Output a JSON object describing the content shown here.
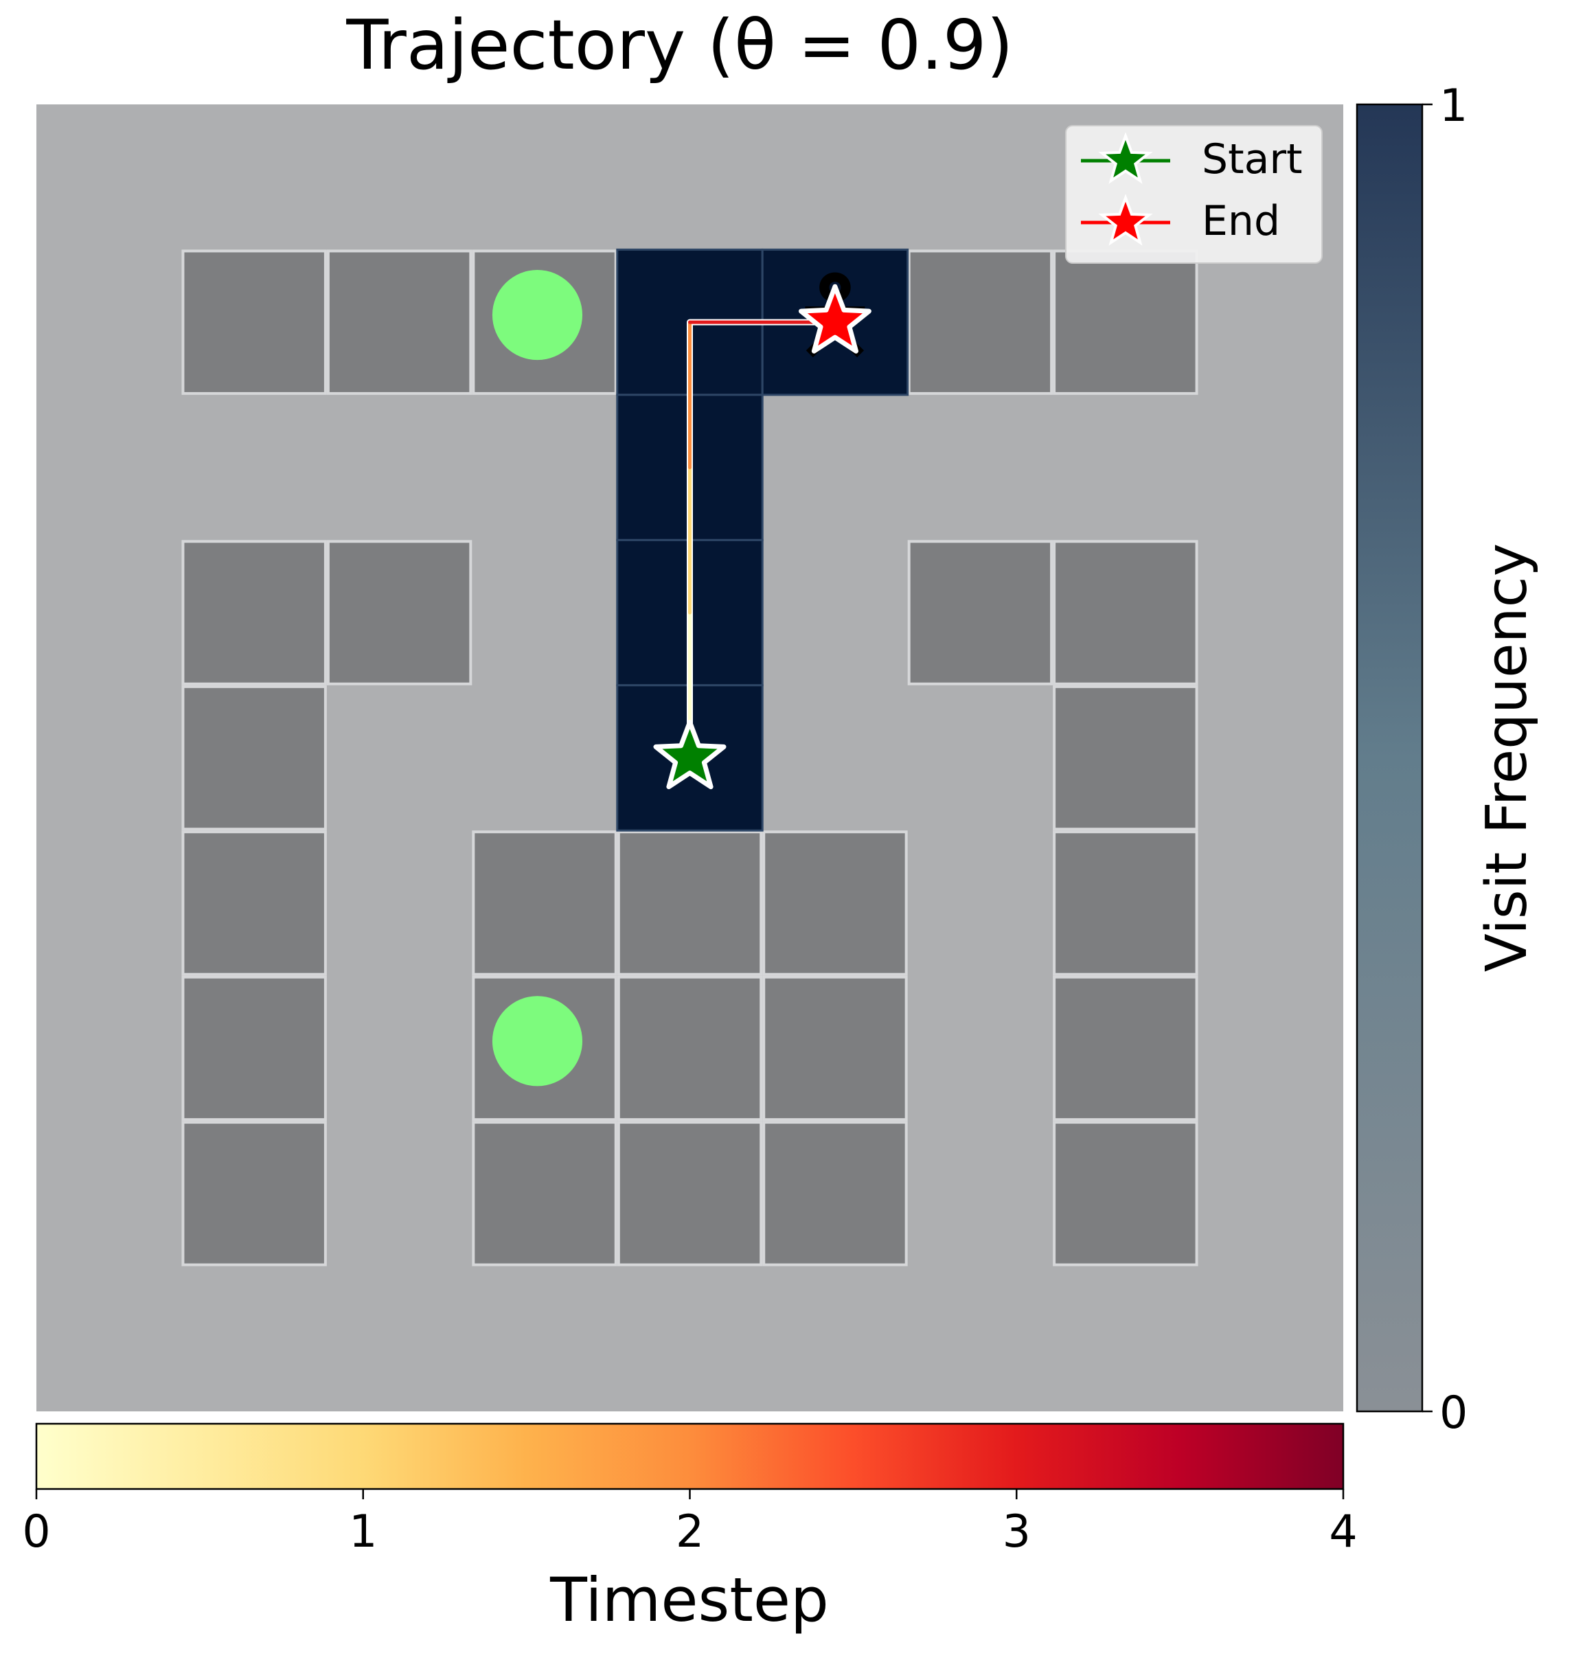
{
  "chart_data": {
    "type": "heatmap",
    "title": "Trajectory (θ = 0.9)",
    "grid": {
      "rows": 9,
      "cols": 9
    },
    "walls": [
      [
        1,
        1
      ],
      [
        1,
        2
      ],
      [
        1,
        3
      ],
      [
        1,
        6
      ],
      [
        1,
        7
      ],
      [
        3,
        1
      ],
      [
        3,
        2
      ],
      [
        3,
        6
      ],
      [
        3,
        7
      ],
      [
        4,
        1
      ],
      [
        4,
        7
      ],
      [
        5,
        1
      ],
      [
        5,
        3
      ],
      [
        5,
        4
      ],
      [
        5,
        5
      ],
      [
        5,
        7
      ],
      [
        6,
        1
      ],
      [
        6,
        3
      ],
      [
        6,
        4
      ],
      [
        6,
        5
      ],
      [
        6,
        7
      ],
      [
        7,
        1
      ],
      [
        7,
        3
      ],
      [
        7,
        4
      ],
      [
        7,
        5
      ],
      [
        7,
        7
      ]
    ],
    "visit_frequency": [
      {
        "row": 1,
        "col": 4,
        "value": 1
      },
      {
        "row": 1,
        "col": 5,
        "value": 1
      },
      {
        "row": 2,
        "col": 4,
        "value": 1
      },
      {
        "row": 3,
        "col": 4,
        "value": 1
      },
      {
        "row": 4,
        "col": 4,
        "value": 1
      }
    ],
    "goals": [
      {
        "row": 1.45,
        "col": 3.45
      },
      {
        "row": 6.45,
        "col": 3.45
      }
    ],
    "agent": {
      "row": 1.5,
      "col": 5.5,
      "glyph": "🯅"
    },
    "trajectory": {
      "timesteps": [
        0,
        1,
        2,
        3,
        4
      ],
      "points": [
        {
          "row": 4.5,
          "col": 4.5,
          "t": 0
        },
        {
          "row": 3.5,
          "col": 4.5,
          "t": 1
        },
        {
          "row": 2.5,
          "col": 4.5,
          "t": 2
        },
        {
          "row": 1.5,
          "col": 4.5,
          "t": 3
        },
        {
          "row": 1.5,
          "col": 5.5,
          "t": 4
        }
      ]
    },
    "start": {
      "row": 4.5,
      "col": 4.5
    },
    "end": {
      "row": 1.5,
      "col": 5.5
    },
    "legend": {
      "position": "top-right",
      "entries": [
        {
          "label": "Start",
          "color": "#008000"
        },
        {
          "label": "End",
          "color": "#ff0000"
        }
      ]
    },
    "colorbar_visit": {
      "label": "Visit Frequency",
      "range": [
        0,
        1
      ],
      "ticks": [
        "0",
        "1"
      ],
      "colors": [
        "#8a9096",
        "#243756"
      ]
    },
    "colorbar_time": {
      "label": "Timestep",
      "range": [
        0,
        4
      ],
      "ticks": [
        "0",
        "1",
        "2",
        "3",
        "4"
      ],
      "colormap": "YlOrRd"
    },
    "colors": {
      "floor": "#aeafb1",
      "wall": "#7d7e80",
      "wall_border": "#d6d7d9",
      "visited": "#041633",
      "goal": "#7dfb7d",
      "agent": "#1a9e3c",
      "start_marker": "#008000",
      "end_marker": "#ff0000"
    }
  }
}
